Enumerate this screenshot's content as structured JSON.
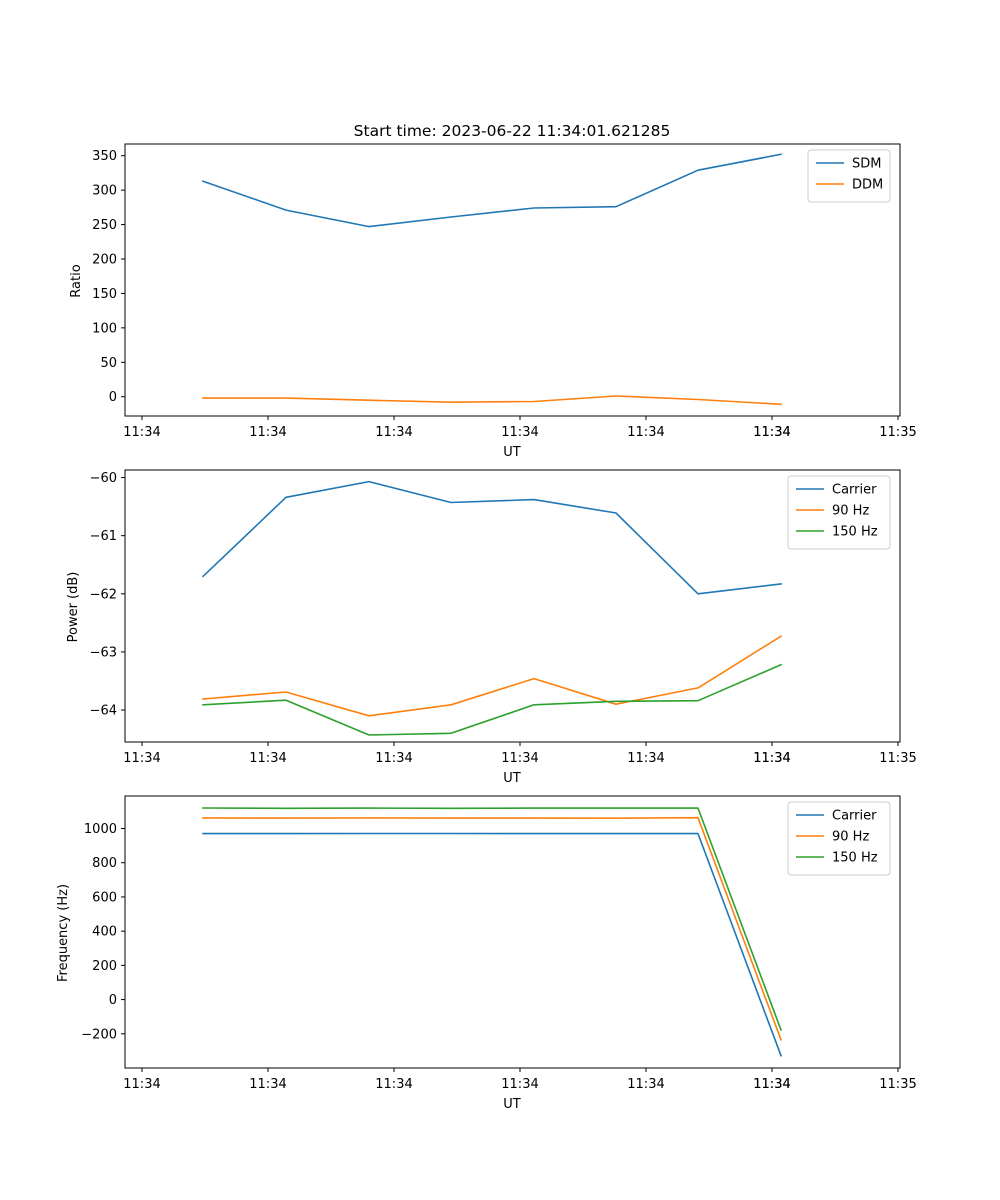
{
  "chart_data": [
    {
      "type": "line",
      "title": "Start time: 2023-06-22 11:34:01.621285",
      "xlabel": "UT",
      "ylabel": "Ratio",
      "x_tick_labels": [
        "11:34",
        "11:34",
        "11:34",
        "11:34",
        "11:34",
        "11:34",
        "11:34",
        "11:35"
      ],
      "y_ticks": [
        0,
        50,
        100,
        150,
        200,
        250,
        300,
        350
      ],
      "ylim": [
        -28,
        367
      ],
      "grid": false,
      "legend_position": "top-right",
      "series": [
        {
          "name": "SDM",
          "color": "#1f77b4",
          "values": [
            313,
            271,
            247,
            261,
            274,
            276,
            329,
            352
          ]
        },
        {
          "name": "DDM",
          "color": "#ff7f0e",
          "values": [
            -2,
            -2,
            -5,
            -8,
            -7,
            1,
            -4,
            -11
          ]
        }
      ]
    },
    {
      "type": "line",
      "title": "",
      "xlabel": "UT",
      "ylabel": "Power (dB)",
      "x_tick_labels": [
        "11:34",
        "11:34",
        "11:34",
        "11:34",
        "11:34",
        "11:34",
        "11:34",
        "11:35"
      ],
      "y_ticks": [
        -64,
        -63,
        -62,
        -61,
        -60
      ],
      "ylim": [
        -64.55,
        -59.87
      ],
      "grid": false,
      "legend_position": "top-right",
      "series": [
        {
          "name": "Carrier",
          "color": "#1f77b4",
          "values": [
            -61.7,
            -60.34,
            -60.07,
            -60.43,
            -60.38,
            -60.61,
            -62.0,
            -61.83
          ]
        },
        {
          "name": "90 Hz",
          "color": "#ff7f0e",
          "values": [
            -63.81,
            -63.69,
            -64.1,
            -63.91,
            -63.46,
            -63.9,
            -63.62,
            -62.73
          ]
        },
        {
          "name": "150 Hz",
          "color": "#2ca02c",
          "values": [
            -63.91,
            -63.83,
            -64.43,
            -64.4,
            -63.91,
            -63.85,
            -63.84,
            -63.22
          ]
        }
      ]
    },
    {
      "type": "line",
      "title": "",
      "xlabel": "UT",
      "ylabel": "Frequency (Hz)",
      "x_tick_labels": [
        "11:34",
        "11:34",
        "11:34",
        "11:34",
        "11:34",
        "11:34",
        "11:34",
        "11:35"
      ],
      "y_ticks": [
        -200,
        0,
        200,
        400,
        600,
        800,
        1000
      ],
      "ylim": [
        -400,
        1190
      ],
      "grid": false,
      "legend_position": "top-right",
      "series": [
        {
          "name": "Carrier",
          "color": "#1f77b4",
          "values": [
            970,
            970,
            971,
            971,
            970,
            970,
            970,
            -328
          ]
        },
        {
          "name": "90 Hz",
          "color": "#ff7f0e",
          "values": [
            1062,
            1061,
            1062,
            1061,
            1061,
            1060,
            1063,
            -235
          ]
        },
        {
          "name": "150 Hz",
          "color": "#2ca02c",
          "values": [
            1120,
            1118,
            1119,
            1118,
            1119,
            1119,
            1119,
            -178
          ]
        }
      ]
    }
  ]
}
